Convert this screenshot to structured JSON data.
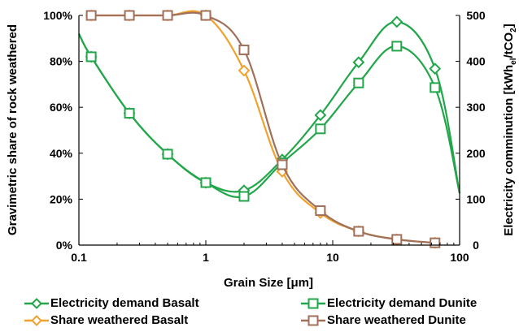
{
  "chart_data": {
    "type": "line",
    "xlabel": "Grain Size [μm]",
    "ylabel_left": "Gravimetric share of rock weathered",
    "ylabel_right_parts": [
      "Electricity comminution [kWh",
      "el",
      "/tCO",
      "2",
      "]"
    ],
    "x_scale": "log",
    "xlim": [
      0.1,
      100
    ],
    "x_ticks": [
      0.1,
      1,
      10,
      100
    ],
    "x_tick_labels": [
      "0.1",
      "1",
      "10",
      "100"
    ],
    "ylim_left": [
      0,
      100
    ],
    "y_left_ticks": [
      0,
      20,
      40,
      60,
      80,
      100
    ],
    "y_left_tick_labels": [
      "0%",
      "20%",
      "40%",
      "60%",
      "80%",
      "100%"
    ],
    "ylim_right": [
      0,
      500
    ],
    "y_right_ticks": [
      0,
      100,
      200,
      300,
      400,
      500
    ],
    "y_right_tick_labels": [
      "0",
      "100",
      "200",
      "300",
      "400",
      "500"
    ],
    "grid": false,
    "legend_position": "bottom",
    "series": [
      {
        "name": "Electricity demand Basalt",
        "axis": "right",
        "marker": "diamond",
        "color": "#22a64a",
        "x": [
          0.1,
          0.125,
          0.25,
          0.5,
          1,
          2,
          4,
          8,
          16,
          32,
          64,
          100
        ],
        "y": [
          460,
          410,
          287,
          198,
          136,
          119,
          186,
          283,
          398,
          486,
          384,
          113
        ]
      },
      {
        "name": "Electricity demand Dunite",
        "axis": "right",
        "marker": "square",
        "color": "#22a64a",
        "x": [
          0.1,
          0.125,
          0.25,
          0.5,
          1,
          2,
          4,
          8,
          16,
          32,
          64,
          100
        ],
        "y": [
          460,
          410,
          287,
          198,
          136,
          106,
          179,
          253,
          353,
          433,
          343,
          113
        ]
      },
      {
        "name": "Share weathered Basalt",
        "axis": "left",
        "marker": "diamond",
        "color": "#f0a22e",
        "x": [
          0.125,
          0.25,
          0.5,
          1,
          2,
          4,
          8,
          16,
          32,
          64
        ],
        "y": [
          100,
          100,
          100,
          100,
          76,
          32,
          14,
          6,
          2.5,
          1
        ]
      },
      {
        "name": "Share weathered Dunite",
        "axis": "left",
        "marker": "square",
        "color": "#a0705a",
        "x": [
          0.125,
          0.25,
          0.5,
          1,
          2,
          4,
          8,
          16,
          32,
          64
        ],
        "y": [
          100,
          100,
          100,
          100,
          85,
          35,
          15,
          6,
          2.5,
          1
        ]
      }
    ]
  }
}
